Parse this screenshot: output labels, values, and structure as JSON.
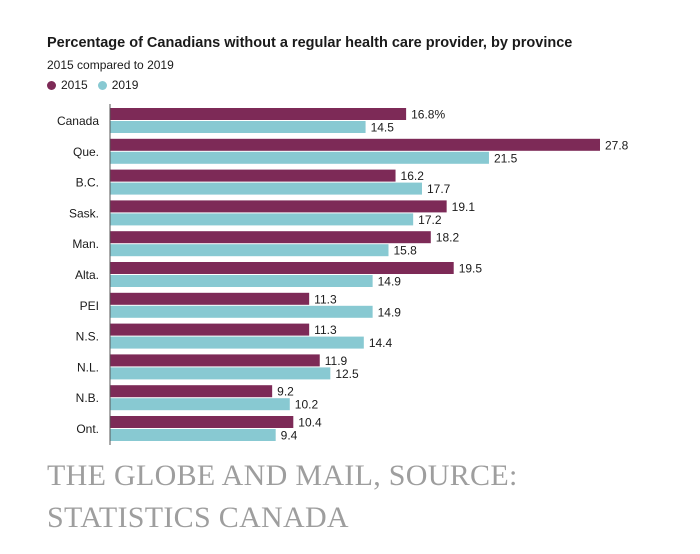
{
  "chart_data": {
    "type": "bar",
    "orientation": "horizontal",
    "title": "Percentage of Canadians without a regular health care provider, by province",
    "subtitle": "2015 compared to 2019",
    "categories": [
      "Canada",
      "Que.",
      "B.C.",
      "Sask.",
      "Man.",
      "Alta.",
      "PEI",
      "N.S.",
      "N.L.",
      "N.B.",
      "Ont."
    ],
    "series": [
      {
        "name": "2015",
        "color": "#7d2a57",
        "values": [
          16.8,
          27.8,
          16.2,
          19.1,
          18.2,
          19.5,
          11.3,
          11.3,
          11.9,
          9.2,
          10.4
        ],
        "labels": [
          "16.8%",
          "27.8",
          "16.2",
          "19.1",
          "18.2",
          "19.5",
          "11.3",
          "11.3",
          "11.9",
          "9.2",
          "10.4"
        ]
      },
      {
        "name": "2019",
        "color": "#88c9d2",
        "values": [
          14.5,
          21.5,
          17.7,
          17.2,
          15.8,
          14.9,
          14.9,
          14.4,
          12.5,
          10.2,
          9.4
        ],
        "labels": [
          "14.5",
          "21.5",
          "17.7",
          "17.2",
          "15.8",
          "14.9",
          "14.9",
          "14.4",
          "12.5",
          "10.2",
          "9.4"
        ]
      }
    ],
    "xlim": [
      0,
      27.8
    ],
    "legend_position": "top-left",
    "grid": false
  },
  "credit": "THE GLOBE AND MAIL, SOURCE: STATISTICS CANADA"
}
